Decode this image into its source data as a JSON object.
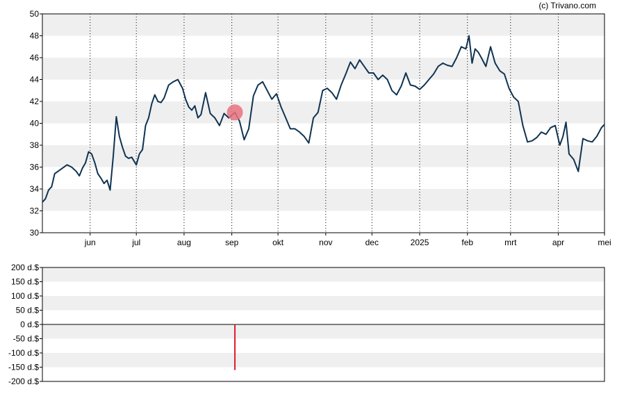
{
  "copyright": "(c) Trivano.com",
  "chart_data": [
    {
      "type": "line",
      "title": "",
      "xlabel": "",
      "ylabel": "",
      "ylim": [
        30,
        50
      ],
      "yticks": [
        30,
        32,
        34,
        36,
        38,
        40,
        42,
        44,
        46,
        48,
        50
      ],
      "xlim": [
        "2024-05-01",
        "2025-05-01"
      ],
      "grid": "alternating horizontal bands, dotted vertical month lines",
      "x_ticks": [
        {
          "label": "jun",
          "date": "2024-06-01"
        },
        {
          "label": "jul",
          "date": "2024-07-01"
        },
        {
          "label": "aug",
          "date": "2024-08-01"
        },
        {
          "label": "sep",
          "date": "2024-09-01"
        },
        {
          "label": "okt",
          "date": "2024-10-01"
        },
        {
          "label": "nov",
          "date": "2024-11-01"
        },
        {
          "label": "dec",
          "date": "2024-12-01"
        },
        {
          "label": "2025",
          "date": "2025-01-01"
        },
        {
          "label": "feb",
          "date": "2025-02-01"
        },
        {
          "label": "mrt",
          "date": "2025-03-01"
        },
        {
          "label": "apr",
          "date": "2025-04-01"
        },
        {
          "label": "mei",
          "date": "2025-05-01"
        }
      ],
      "line_color": "#0f3352",
      "marker_color": "#e8737f",
      "marker": {
        "date": "2024-09-03",
        "value": 41.0
      },
      "series": [
        {
          "x": [
            "2024-05-01",
            "2024-05-03",
            "2024-05-05",
            "2024-05-07",
            "2024-05-09",
            "2024-05-11",
            "2024-05-14",
            "2024-05-17",
            "2024-05-20",
            "2024-05-23",
            "2024-05-25",
            "2024-05-27",
            "2024-05-29",
            "2024-05-31",
            "2024-06-02",
            "2024-06-04",
            "2024-06-06",
            "2024-06-08",
            "2024-06-10",
            "2024-06-12",
            "2024-06-14",
            "2024-06-16",
            "2024-06-18",
            "2024-06-20",
            "2024-06-22",
            "2024-06-24",
            "2024-06-26",
            "2024-06-28",
            "2024-07-01",
            "2024-07-03",
            "2024-07-05",
            "2024-07-07",
            "2024-07-09",
            "2024-07-11",
            "2024-07-13",
            "2024-07-15",
            "2024-07-17",
            "2024-07-19",
            "2024-07-22",
            "2024-07-25",
            "2024-07-28",
            "2024-07-31",
            "2024-08-02",
            "2024-08-04",
            "2024-08-06",
            "2024-08-08",
            "2024-08-10",
            "2024-08-12",
            "2024-08-15",
            "2024-08-18",
            "2024-08-21",
            "2024-08-24",
            "2024-08-27",
            "2024-08-30",
            "2024-09-03",
            "2024-09-06",
            "2024-09-09",
            "2024-09-12",
            "2024-09-15",
            "2024-09-18",
            "2024-09-21",
            "2024-09-24",
            "2024-09-27",
            "2024-09-30",
            "2024-10-03",
            "2024-10-06",
            "2024-10-09",
            "2024-10-12",
            "2024-10-15",
            "2024-10-18",
            "2024-10-21",
            "2024-10-24",
            "2024-10-27",
            "2024-10-30",
            "2024-11-02",
            "2024-11-05",
            "2024-11-08",
            "2024-11-11",
            "2024-11-14",
            "2024-11-17",
            "2024-11-20",
            "2024-11-23",
            "2024-11-26",
            "2024-11-29",
            "2024-12-02",
            "2024-12-05",
            "2024-12-08",
            "2024-12-11",
            "2024-12-14",
            "2024-12-17",
            "2024-12-20",
            "2024-12-23",
            "2024-12-26",
            "2024-12-29",
            "2025-01-01",
            "2025-01-04",
            "2025-01-07",
            "2025-01-10",
            "2025-01-13",
            "2025-01-16",
            "2025-01-19",
            "2025-01-22",
            "2025-01-25",
            "2025-01-28",
            "2025-01-31",
            "2025-02-02",
            "2025-02-04",
            "2025-02-06",
            "2025-02-08",
            "2025-02-10",
            "2025-02-13",
            "2025-02-16",
            "2025-02-19",
            "2025-02-22",
            "2025-02-25",
            "2025-02-28",
            "2025-03-03",
            "2025-03-06",
            "2025-03-09",
            "2025-03-12",
            "2025-03-15",
            "2025-03-18",
            "2025-03-21",
            "2025-03-24",
            "2025-03-27",
            "2025-03-30",
            "2025-04-02",
            "2025-04-04",
            "2025-04-06",
            "2025-04-08",
            "2025-04-11",
            "2025-04-14",
            "2025-04-17",
            "2025-04-20",
            "2025-04-23",
            "2025-04-26",
            "2025-04-29",
            "2025-05-01"
          ],
          "values": [
            32.8,
            33.1,
            33.9,
            34.2,
            35.4,
            35.6,
            35.9,
            36.2,
            36.0,
            35.6,
            35.2,
            35.9,
            36.4,
            37.4,
            37.2,
            36.4,
            35.4,
            35.0,
            34.5,
            34.8,
            33.9,
            37.0,
            40.6,
            38.8,
            37.8,
            37.0,
            36.8,
            36.9,
            36.2,
            37.2,
            37.6,
            39.8,
            40.5,
            41.8,
            42.6,
            42.0,
            41.9,
            42.3,
            43.5,
            43.8,
            44.0,
            43.2,
            42.2,
            41.5,
            41.2,
            41.6,
            40.5,
            40.8,
            42.8,
            40.9,
            40.5,
            39.8,
            40.9,
            40.5,
            41.0,
            40.2,
            38.5,
            39.5,
            42.5,
            43.5,
            43.8,
            43.0,
            42.2,
            42.7,
            41.5,
            40.5,
            39.5,
            39.5,
            39.2,
            38.8,
            38.2,
            40.5,
            41.0,
            43.0,
            43.2,
            42.8,
            42.2,
            43.5,
            44.5,
            45.6,
            45.0,
            45.8,
            45.2,
            44.6,
            44.6,
            44.0,
            44.4,
            44.0,
            43.0,
            42.6,
            43.4,
            44.6,
            43.5,
            43.4,
            43.1,
            43.5,
            44.0,
            44.5,
            45.2,
            45.5,
            45.3,
            45.2,
            46.0,
            47.0,
            46.8,
            48.0,
            45.5,
            46.8,
            46.5,
            46.0,
            45.2,
            47.0,
            45.5,
            44.8,
            44.5,
            43.2,
            42.4,
            42.0,
            39.8,
            38.3,
            38.4,
            38.7,
            39.2,
            39.0,
            39.6,
            39.8,
            38.0,
            38.8,
            40.1,
            37.2,
            36.7,
            35.6,
            38.6,
            38.4,
            38.3,
            38.8,
            39.6,
            39.9
          ]
        }
      ]
    },
    {
      "type": "bar",
      "title": "",
      "xlabel": "",
      "ylabel": "",
      "ylim": [
        -200,
        200
      ],
      "yticks": [
        -200,
        -150,
        -100,
        -50,
        0,
        50,
        100,
        150,
        200
      ],
      "ytick_labels": [
        "-200 d.$",
        "-150 d.$",
        "-100 d.$",
        "-50 d.$",
        "0 d.$",
        "50 d.$",
        "100 d.$",
        "150 d.$",
        "200 d.$"
      ],
      "bar_color": "#dd1c2c",
      "grid": "alternating horizontal bands",
      "series": [
        {
          "x": [
            "2024-09-03"
          ],
          "values": [
            -160
          ]
        }
      ]
    }
  ]
}
